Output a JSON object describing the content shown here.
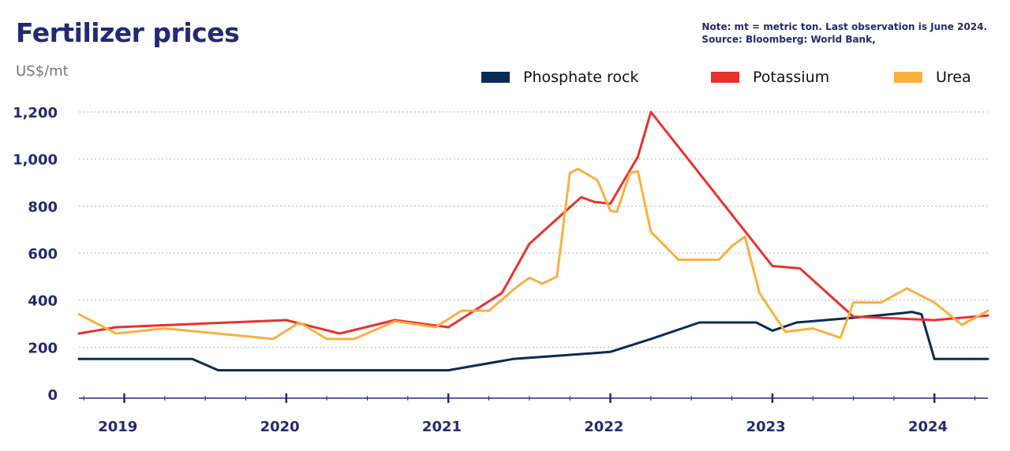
{
  "header": {
    "title": "Fertilizer prices",
    "unit": "US$/mt",
    "note_line1": "Note: mt = metric ton. Last observation is June 2024.",
    "note_line2": "Source: Bloomberg: World Bank,"
  },
  "chart_data": {
    "type": "line",
    "title": "Fertilizer prices",
    "ylabel": "US$/mt",
    "xlabel": "",
    "ylim": [
      0,
      1200
    ],
    "yticks": [
      0,
      200,
      400,
      600,
      800,
      1000,
      1200
    ],
    "ytick_labels": [
      "0",
      "200",
      "400",
      "600",
      "800",
      "1,000",
      "1,200"
    ],
    "xlim": [
      2018.72,
      2024.33
    ],
    "xtick_labels": [
      "2019",
      "2020",
      "2021",
      "2022",
      "2023",
      "2024"
    ],
    "grid": "horizontal dotted",
    "legend_position": "top-right",
    "series": [
      {
        "name": "Phosphate rock",
        "color": "#0b2a55",
        "x": [
          2018.72,
          2019.42,
          2019.58,
          2020.0,
          2020.5,
          2021.0,
          2021.4,
          2022.0,
          2022.25,
          2022.55,
          2022.9,
          2023.0,
          2023.15,
          2023.5,
          2023.8,
          2023.86,
          2023.92,
          2024.0,
          2024.33
        ],
        "y": [
          150,
          150,
          102,
          102,
          102,
          102,
          150,
          180,
          235,
          305,
          305,
          270,
          305,
          325,
          345,
          350,
          340,
          150,
          150
        ]
      },
      {
        "name": "Potassium",
        "color": "#e8322c",
        "x": [
          2018.72,
          2018.95,
          2020.0,
          2020.33,
          2020.67,
          2021.0,
          2021.33,
          2021.5,
          2021.82,
          2021.9,
          2022.0,
          2022.17,
          2022.25,
          2023.0,
          2023.17,
          2023.5,
          2023.83,
          2024.0,
          2024.33
        ],
        "y": [
          258,
          285,
          315,
          258,
          315,
          285,
          430,
          640,
          838,
          818,
          810,
          1010,
          1200,
          545,
          535,
          330,
          320,
          315,
          335
        ]
      },
      {
        "name": "Urea",
        "color": "#f9b040",
        "x": [
          2018.72,
          2018.95,
          2019.25,
          2019.92,
          2020.08,
          2020.25,
          2020.42,
          2020.67,
          2020.92,
          2021.08,
          2021.25,
          2021.42,
          2021.5,
          2021.58,
          2021.67,
          2021.75,
          2021.8,
          2021.92,
          2022.0,
          2022.04,
          2022.12,
          2022.17,
          2022.25,
          2022.33,
          2022.42,
          2022.5,
          2022.67,
          2022.75,
          2022.83,
          2022.92,
          2023.08,
          2023.25,
          2023.42,
          2023.5,
          2023.67,
          2023.83,
          2024.0,
          2024.17,
          2024.33
        ],
        "y": [
          340,
          258,
          280,
          235,
          305,
          235,
          235,
          310,
          285,
          355,
          355,
          455,
          495,
          470,
          500,
          940,
          958,
          910,
          780,
          775,
          940,
          948,
          690,
          635,
          572,
          572,
          572,
          630,
          670,
          430,
          265,
          280,
          240,
          390,
          390,
          450,
          390,
          295,
          355
        ]
      }
    ]
  }
}
